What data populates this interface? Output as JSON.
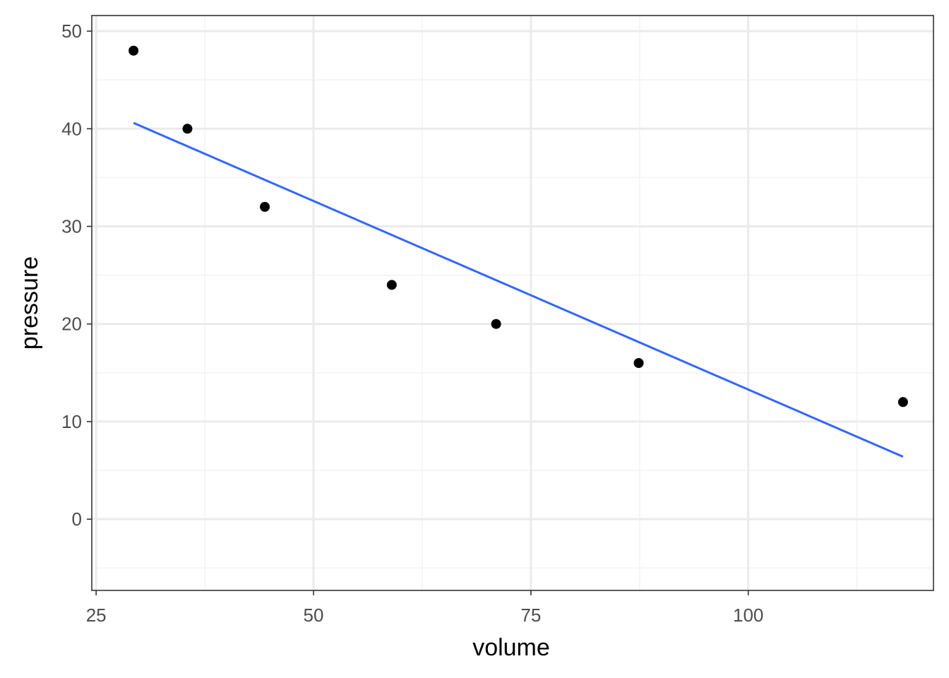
{
  "chart_data": {
    "type": "scatter",
    "title": "",
    "xlabel": "volume",
    "ylabel": "pressure",
    "xlim": [
      24.5,
      121.3
    ],
    "ylim": [
      -7.3,
      51.6
    ],
    "x_ticks": [
      25,
      50,
      75,
      100
    ],
    "y_ticks": [
      0,
      10,
      20,
      30,
      40,
      50
    ],
    "grid": true,
    "legend": "none",
    "points": {
      "x": [
        29.3,
        35.5,
        44.4,
        59.0,
        71.0,
        87.4,
        117.8
      ],
      "y": [
        48,
        40,
        32,
        24,
        20,
        16,
        12
      ]
    },
    "trend_line": {
      "x": [
        29.3,
        117.8
      ],
      "y": [
        40.6,
        6.4
      ]
    },
    "colors": {
      "points": "#000000",
      "trend_line": "#3366ff",
      "grid_major": "#ebebeb",
      "grid_minor": "#f2f2f2",
      "panel_border": "#333333"
    }
  }
}
